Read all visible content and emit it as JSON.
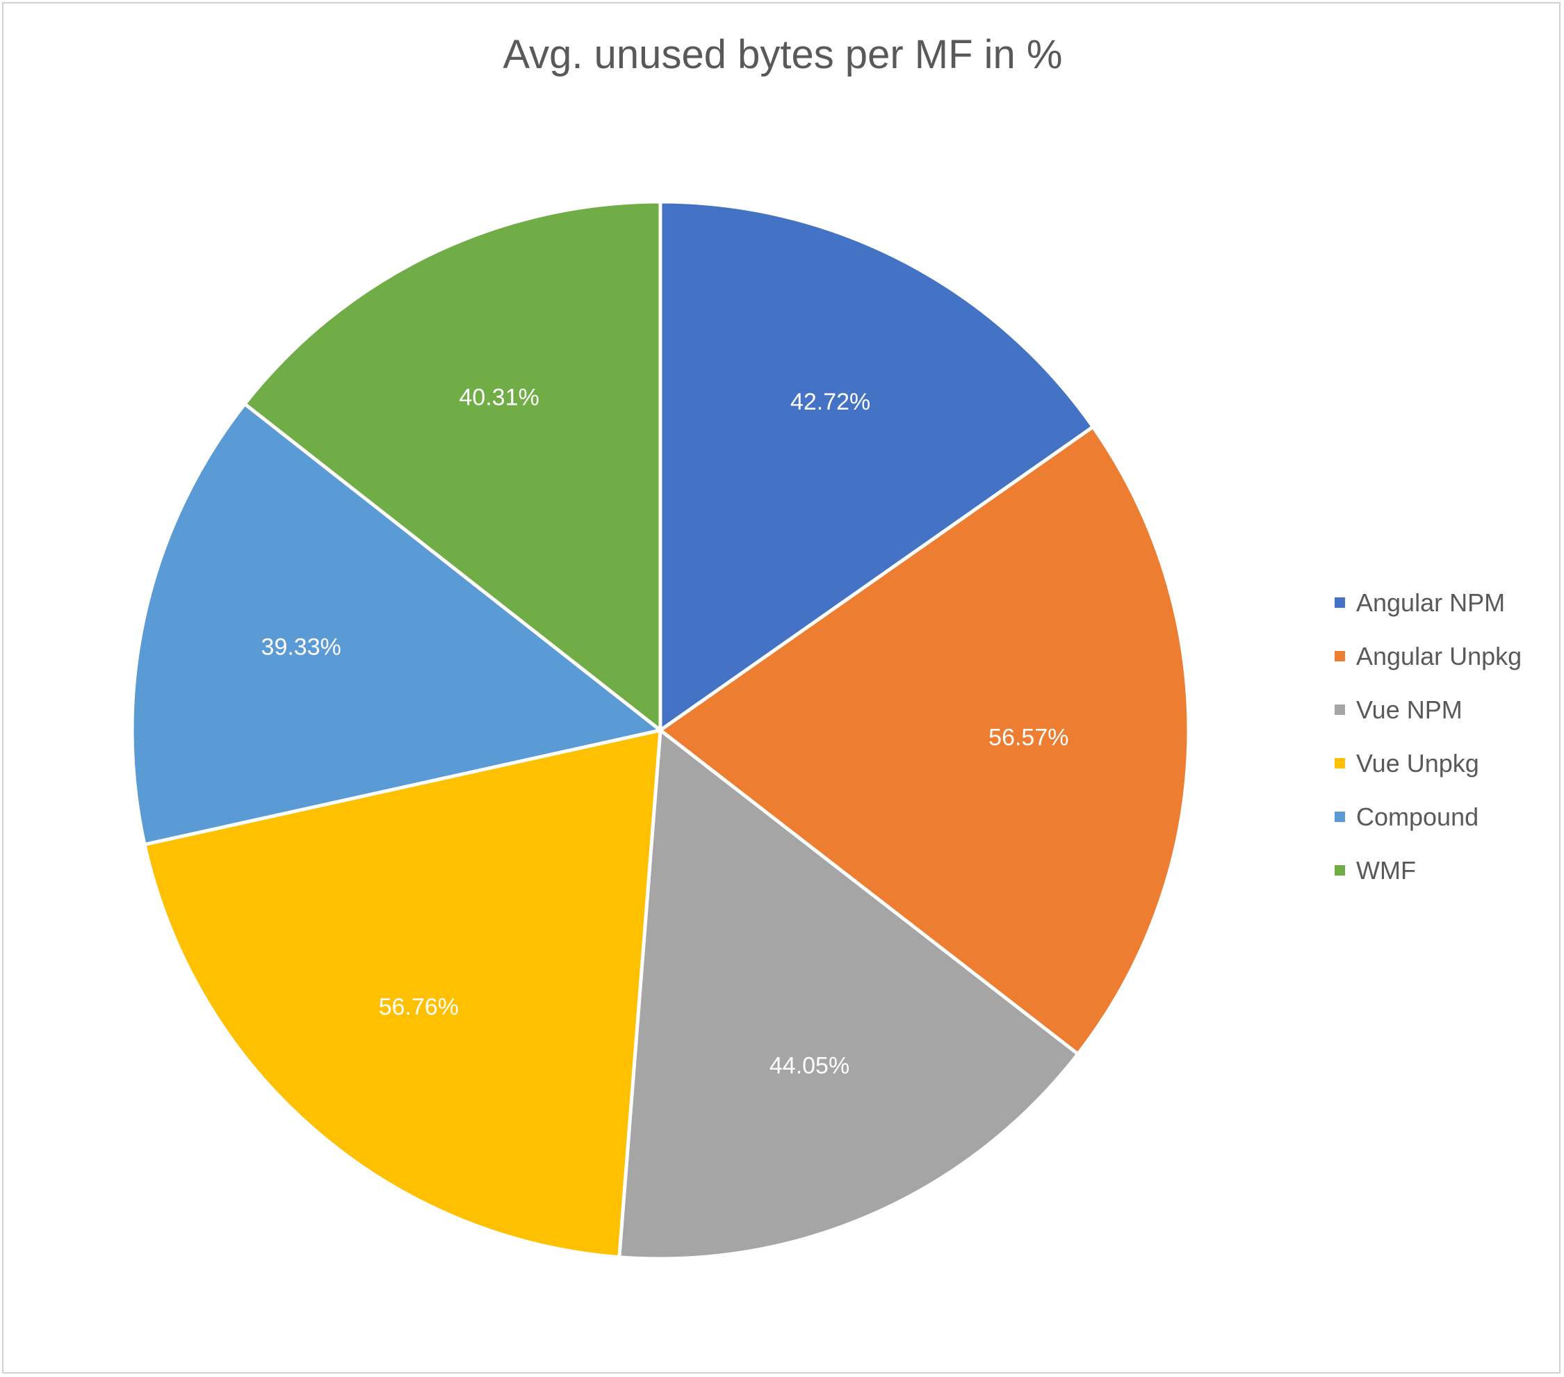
{
  "chart_data": {
    "type": "pie",
    "title": "Avg. unused bytes per MF in %",
    "start_angle": "top",
    "direction": "clockwise",
    "legend_position": "right",
    "label_color": "#ffffff",
    "slices": [
      {
        "name": "Angular NPM",
        "value": 42.72,
        "label": "42.72%",
        "color": "#4472C4"
      },
      {
        "name": "Angular Unpkg",
        "value": 56.57,
        "label": "56.57%",
        "color": "#ED7D31"
      },
      {
        "name": "Vue NPM",
        "value": 44.05,
        "label": "44.05%",
        "color": "#A5A5A5"
      },
      {
        "name": "Vue Unpkg",
        "value": 56.76,
        "label": "56.76%",
        "color": "#FFC000"
      },
      {
        "name": "Compound",
        "value": 39.33,
        "label": "39.33%",
        "color": "#5B9BD5"
      },
      {
        "name": "WMF",
        "value": 40.31,
        "label": "40.31%",
        "color": "#70AD47"
      }
    ]
  }
}
